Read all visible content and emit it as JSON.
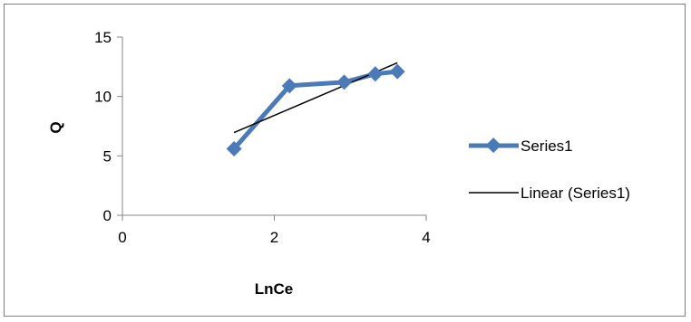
{
  "chart_data": {
    "type": "line",
    "title": "",
    "xlabel": "LnCe",
    "ylabel": "Q",
    "xlim": [
      0,
      4
    ],
    "ylim": [
      0,
      15
    ],
    "x_ticks": [
      "0",
      "2",
      "4"
    ],
    "y_ticks": [
      "0",
      "5",
      "10",
      "15"
    ],
    "x_tick_values": [
      0,
      2,
      4
    ],
    "y_tick_values": [
      0,
      5,
      10,
      15
    ],
    "grid": false,
    "legend_position": "right",
    "series": [
      {
        "name": "Series1",
        "color": "#4a7ab8",
        "marker": "diamond",
        "x": [
          1.47,
          2.2,
          2.92,
          3.33,
          3.62
        ],
        "y": [
          5.6,
          10.9,
          11.2,
          11.9,
          12.1
        ]
      }
    ],
    "trendline": {
      "name": "Linear (Series1)",
      "color": "#000000",
      "type": "linear",
      "x_range": [
        1.47,
        3.62
      ]
    }
  }
}
